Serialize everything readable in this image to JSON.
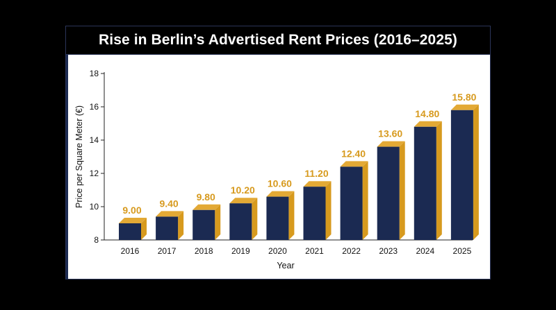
{
  "title": "Rise in Berlin’s Advertised Rent Prices (2016–2025)",
  "colors": {
    "bar_front": "#1b2a52",
    "bar_side": "#d79a1e",
    "bar_top": "#e3a935",
    "label": "#d79a1e",
    "axis": "#222222"
  },
  "chart_data": {
    "type": "bar",
    "title": "Rise in Berlin’s Advertised Rent Prices (2016–2025)",
    "xlabel": "Year",
    "ylabel": "Price per Square Meter (€)",
    "categories": [
      "2016",
      "2017",
      "2018",
      "2019",
      "2020",
      "2021",
      "2022",
      "2023",
      "2024",
      "2025"
    ],
    "values": [
      9.0,
      9.4,
      9.8,
      10.2,
      10.6,
      11.2,
      12.4,
      13.6,
      14.8,
      15.8
    ],
    "value_labels": [
      "9.00",
      "9.40",
      "9.80",
      "10.20",
      "10.60",
      "11.20",
      "12.40",
      "13.60",
      "14.80",
      "15.80"
    ],
    "ylim": [
      8,
      18
    ],
    "yticks": [
      "8",
      "10",
      "12",
      "14",
      "16",
      "18"
    ],
    "grid": false,
    "legend": "none"
  }
}
